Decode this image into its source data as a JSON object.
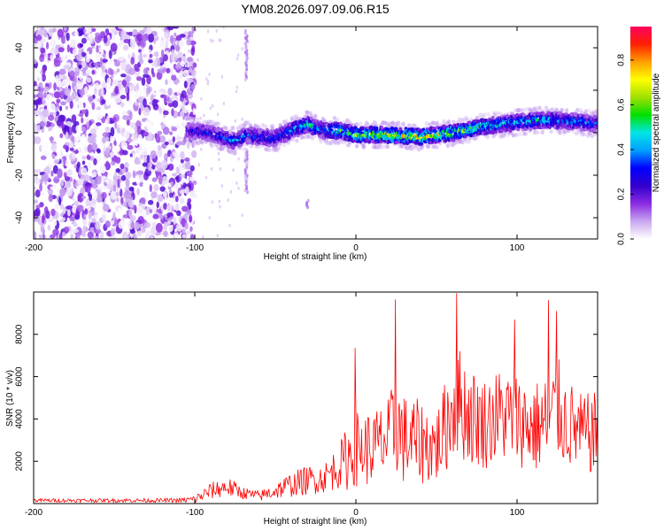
{
  "chart_data": [
    {
      "type": "heatmap",
      "title": "YM08.2026.097.09.06.R15",
      "xlabel": "Height of straight line (km)",
      "ylabel": "Frequency (Hz)",
      "xlim": [
        -200,
        150
      ],
      "ylim": [
        -50,
        50
      ],
      "xticks": [
        -200,
        -100,
        0,
        100
      ],
      "yticks": [
        -40,
        -20,
        0,
        20,
        40
      ],
      "colorbar": {
        "label": "Normalized spectral amplitude",
        "range": [
          0,
          0.95
        ],
        "ticks": [
          0.0,
          0.2,
          0.4,
          0.6,
          0.8
        ],
        "colormap": [
          "#ffffff",
          "#c9a7f0",
          "#8a2be2",
          "#3300cc",
          "#0000ff",
          "#00a0ff",
          "#00e5e5",
          "#00e000",
          "#a0e000",
          "#ffff00",
          "#ffa000",
          "#ff2000",
          "#ff0060"
        ]
      },
      "noise_region": {
        "x_from": -200,
        "x_to": -100,
        "y_from": -50,
        "y_to": 50
      },
      "ridge": {
        "x": [
          -105,
          -95,
          -85,
          -75,
          -68,
          -60,
          -50,
          -40,
          -30,
          -20,
          -10,
          0,
          20,
          40,
          60,
          80,
          100,
          120,
          140,
          150
        ],
        "y": [
          1,
          0.5,
          -1.5,
          -4,
          -1,
          -2,
          -2.5,
          1,
          4,
          1,
          1,
          -1,
          -1,
          -2,
          0,
          3,
          5,
          6,
          5,
          4
        ],
        "amplitude": [
          0.3,
          0.35,
          0.35,
          0.45,
          0.4,
          0.4,
          0.4,
          0.5,
          0.55,
          0.45,
          0.6,
          0.7,
          0.75,
          0.8,
          0.7,
          0.6,
          0.5,
          0.5,
          0.45,
          0.4
        ]
      },
      "streaks": [
        {
          "x": -68,
          "y_from": 25,
          "y_to": 48
        },
        {
          "x": -68,
          "y_from": -28,
          "y_to": -8
        },
        {
          "x": -30,
          "y_from": -35,
          "y_to": -32
        }
      ]
    },
    {
      "type": "line",
      "xlabel": "Height of straight line (km)",
      "ylabel": "SNR (10 * v/v)",
      "xlim": [
        -200,
        150
      ],
      "ylim": [
        0,
        10000
      ],
      "xticks": [
        -200,
        -100,
        0,
        100
      ],
      "yticks": [
        2000,
        4000,
        6000,
        8000
      ],
      "series": [
        {
          "name": "SNR",
          "color": "#ff0000",
          "x": [
            -200,
            -110,
            -100,
            -90,
            -80,
            -70,
            -60,
            -50,
            -40,
            -30,
            -20,
            -10,
            -5,
            0,
            10,
            20,
            25,
            30,
            40,
            50,
            55,
            60,
            62,
            70,
            80,
            90,
            100,
            110,
            120,
            125,
            130,
            140,
            150
          ],
          "base": [
            150,
            150,
            200,
            600,
            800,
            500,
            350,
            600,
            900,
            1100,
            1200,
            1800,
            2200,
            2600,
            2600,
            3000,
            3800,
            3000,
            2900,
            2700,
            3500,
            4500,
            5000,
            4200,
            3800,
            4200,
            4000,
            3600,
            3800,
            4500,
            3900,
            3300,
            3300
          ],
          "amp": [
            80,
            100,
            200,
            400,
            500,
            300,
            250,
            400,
            600,
            700,
            700,
            1100,
            1600,
            1800,
            1800,
            2000,
            2400,
            2200,
            2000,
            1800,
            2200,
            2500,
            2800,
            2400,
            2200,
            2300,
            2200,
            2200,
            2400,
            2500,
            2200,
            1900,
            2000
          ],
          "peaks": [
            {
              "x": -0.5,
              "y": 7350
            },
            {
              "x": 24.5,
              "y": 9650
            },
            {
              "x": 62.5,
              "y": 9950
            },
            {
              "x": 119.5,
              "y": 9620
            },
            {
              "x": 124.5,
              "y": 9100
            },
            {
              "x": 98.5,
              "y": 8700
            }
          ]
        }
      ]
    }
  ]
}
